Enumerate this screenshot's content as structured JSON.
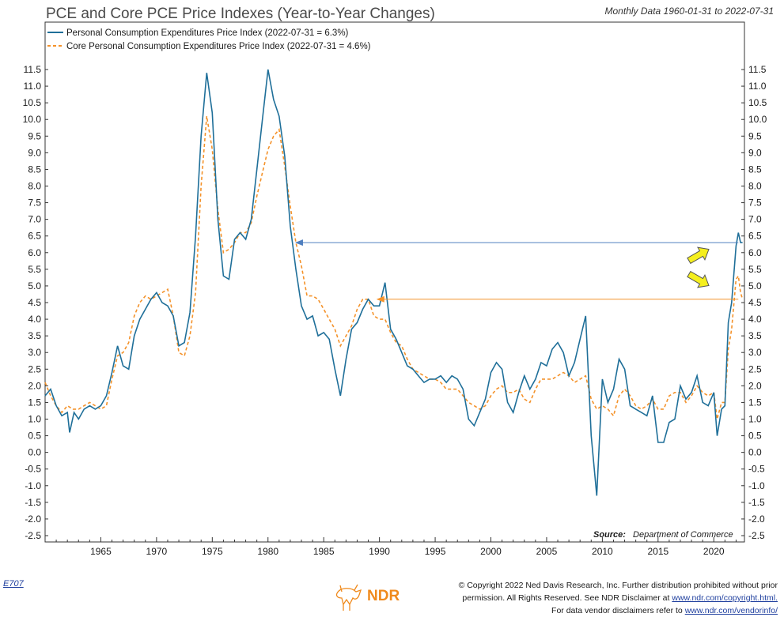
{
  "header": {
    "title": "PCE and Core PCE Price Indexes (Year-to-Year Changes)",
    "subtitle": "Monthly Data 1960-01-31 to 2022-07-31"
  },
  "legend": {
    "series1_label": "Personal Consumption Expenditures Price Index (2022-07-31 = 6.3%)",
    "series2_label": "Core Personal Consumption Expenditures Price Index (2022-07-31 = 4.6%)"
  },
  "source": {
    "label": "Source:",
    "value": "Department of Commerce"
  },
  "footer": {
    "chart_code": "E707",
    "copyright_line1": "© Copyright 2022 Ned Davis Research, Inc. Further distribution prohibited without prior",
    "copyright_line2_prefix": "permission. All Rights Reserved. See NDR Disclaimer at",
    "copyright_line2_link": "www.ndr.com/copyright.html.",
    "copyright_line3_prefix": "For data vendor disclaimers refer to",
    "copyright_line3_link": "www.ndr.com/vendorinfo/",
    "logo_text": "NDR"
  },
  "colors": {
    "pce": "#1f6f99",
    "core_pce": "#f4922a",
    "arrow_pce": "#4f7fbf",
    "arrow_core": "#f4922a",
    "callout_arrow": "#f5ef1e"
  },
  "chart_data": {
    "type": "line",
    "x_range": [
      "1960-01",
      "2022-07"
    ],
    "ylim": [
      -2.5,
      11.5
    ],
    "yticks": [
      "-2.5",
      "-2.0",
      "-1.5",
      "-1.0",
      "-0.5",
      "0.0",
      "0.5",
      "1.0",
      "1.5",
      "2.0",
      "2.5",
      "3.0",
      "3.5",
      "4.0",
      "4.5",
      "5.0",
      "5.5",
      "6.0",
      "6.5",
      "7.0",
      "7.5",
      "8.0",
      "8.5",
      "9.0",
      "9.5",
      "10.0",
      "10.5",
      "11.0",
      "11.5"
    ],
    "xticks": [
      "1965",
      "1970",
      "1975",
      "1980",
      "1985",
      "1990",
      "1995",
      "2000",
      "2005",
      "2010",
      "2015",
      "2020"
    ],
    "grid": false,
    "legend_position": "top-left",
    "series": [
      {
        "name": "Personal Consumption Expenditures Price Index",
        "style": "solid",
        "points": [
          [
            1960.0,
            1.7
          ],
          [
            1960.5,
            1.9
          ],
          [
            1961.0,
            1.4
          ],
          [
            1961.5,
            1.1
          ],
          [
            1962.0,
            1.2
          ],
          [
            1962.2,
            0.6
          ],
          [
            1962.6,
            1.2
          ],
          [
            1963.0,
            1.0
          ],
          [
            1963.5,
            1.3
          ],
          [
            1964.0,
            1.4
          ],
          [
            1964.5,
            1.3
          ],
          [
            1965.0,
            1.4
          ],
          [
            1965.5,
            1.7
          ],
          [
            1966.0,
            2.4
          ],
          [
            1966.5,
            3.2
          ],
          [
            1967.0,
            2.6
          ],
          [
            1967.5,
            2.5
          ],
          [
            1968.0,
            3.5
          ],
          [
            1968.5,
            4.0
          ],
          [
            1969.0,
            4.3
          ],
          [
            1969.5,
            4.6
          ],
          [
            1970.0,
            4.8
          ],
          [
            1970.5,
            4.5
          ],
          [
            1971.0,
            4.4
          ],
          [
            1971.5,
            4.1
          ],
          [
            1972.0,
            3.2
          ],
          [
            1972.5,
            3.3
          ],
          [
            1973.0,
            4.2
          ],
          [
            1973.5,
            6.5
          ],
          [
            1974.0,
            9.5
          ],
          [
            1974.5,
            11.4
          ],
          [
            1975.0,
            10.2
          ],
          [
            1975.5,
            7.0
          ],
          [
            1976.0,
            5.3
          ],
          [
            1976.5,
            5.2
          ],
          [
            1977.0,
            6.4
          ],
          [
            1977.5,
            6.6
          ],
          [
            1978.0,
            6.4
          ],
          [
            1978.5,
            7.0
          ],
          [
            1979.0,
            8.5
          ],
          [
            1979.5,
            10.0
          ],
          [
            1980.0,
            11.5
          ],
          [
            1980.5,
            10.6
          ],
          [
            1981.0,
            10.1
          ],
          [
            1981.5,
            8.9
          ],
          [
            1982.0,
            6.8
          ],
          [
            1982.5,
            5.5
          ],
          [
            1983.0,
            4.4
          ],
          [
            1983.5,
            4.0
          ],
          [
            1984.0,
            4.1
          ],
          [
            1984.5,
            3.5
          ],
          [
            1985.0,
            3.6
          ],
          [
            1985.5,
            3.4
          ],
          [
            1986.0,
            2.5
          ],
          [
            1986.5,
            1.7
          ],
          [
            1987.0,
            2.8
          ],
          [
            1987.5,
            3.7
          ],
          [
            1988.0,
            3.9
          ],
          [
            1988.5,
            4.3
          ],
          [
            1989.0,
            4.6
          ],
          [
            1989.5,
            4.4
          ],
          [
            1990.0,
            4.4
          ],
          [
            1990.5,
            5.1
          ],
          [
            1991.0,
            3.7
          ],
          [
            1991.5,
            3.4
          ],
          [
            1992.0,
            3.0
          ],
          [
            1992.5,
            2.6
          ],
          [
            1993.0,
            2.5
          ],
          [
            1993.5,
            2.3
          ],
          [
            1994.0,
            2.1
          ],
          [
            1994.5,
            2.2
          ],
          [
            1995.0,
            2.2
          ],
          [
            1995.5,
            2.3
          ],
          [
            1996.0,
            2.1
          ],
          [
            1996.5,
            2.3
          ],
          [
            1997.0,
            2.2
          ],
          [
            1997.5,
            1.9
          ],
          [
            1998.0,
            1.0
          ],
          [
            1998.5,
            0.8
          ],
          [
            1999.0,
            1.2
          ],
          [
            1999.5,
            1.6
          ],
          [
            2000.0,
            2.4
          ],
          [
            2000.5,
            2.7
          ],
          [
            2001.0,
            2.5
          ],
          [
            2001.5,
            1.5
          ],
          [
            2002.0,
            1.2
          ],
          [
            2002.5,
            1.8
          ],
          [
            2003.0,
            2.3
          ],
          [
            2003.5,
            1.9
          ],
          [
            2004.0,
            2.2
          ],
          [
            2004.5,
            2.7
          ],
          [
            2005.0,
            2.6
          ],
          [
            2005.5,
            3.1
          ],
          [
            2006.0,
            3.3
          ],
          [
            2006.5,
            3.0
          ],
          [
            2007.0,
            2.3
          ],
          [
            2007.5,
            2.7
          ],
          [
            2008.0,
            3.4
          ],
          [
            2008.5,
            4.1
          ],
          [
            2009.0,
            0.5
          ],
          [
            2009.5,
            -1.3
          ],
          [
            2010.0,
            2.2
          ],
          [
            2010.5,
            1.5
          ],
          [
            2011.0,
            1.9
          ],
          [
            2011.5,
            2.8
          ],
          [
            2012.0,
            2.5
          ],
          [
            2012.5,
            1.4
          ],
          [
            2013.0,
            1.3
          ],
          [
            2013.5,
            1.2
          ],
          [
            2014.0,
            1.1
          ],
          [
            2014.5,
            1.7
          ],
          [
            2015.0,
            0.3
          ],
          [
            2015.5,
            0.3
          ],
          [
            2016.0,
            0.9
          ],
          [
            2016.5,
            1.0
          ],
          [
            2017.0,
            2.0
          ],
          [
            2017.5,
            1.6
          ],
          [
            2018.0,
            1.8
          ],
          [
            2018.5,
            2.3
          ],
          [
            2019.0,
            1.5
          ],
          [
            2019.5,
            1.4
          ],
          [
            2020.0,
            1.8
          ],
          [
            2020.3,
            0.5
          ],
          [
            2020.7,
            1.3
          ],
          [
            2021.0,
            1.4
          ],
          [
            2021.3,
            3.9
          ],
          [
            2021.6,
            4.5
          ],
          [
            2022.0,
            6.2
          ],
          [
            2022.2,
            6.6
          ],
          [
            2022.4,
            6.3
          ],
          [
            2022.58,
            6.3
          ]
        ]
      },
      {
        "name": "Core Personal Consumption Expenditures Price Index",
        "style": "dashed",
        "points": [
          [
            1960.0,
            2.1
          ],
          [
            1960.5,
            1.7
          ],
          [
            1961.0,
            1.4
          ],
          [
            1961.5,
            1.2
          ],
          [
            1962.0,
            1.4
          ],
          [
            1962.5,
            1.3
          ],
          [
            1963.0,
            1.3
          ],
          [
            1963.5,
            1.4
          ],
          [
            1964.0,
            1.5
          ],
          [
            1964.5,
            1.4
          ],
          [
            1965.0,
            1.3
          ],
          [
            1965.5,
            1.4
          ],
          [
            1966.0,
            2.2
          ],
          [
            1966.5,
            2.9
          ],
          [
            1967.0,
            3.0
          ],
          [
            1967.5,
            3.3
          ],
          [
            1968.0,
            4.1
          ],
          [
            1968.5,
            4.5
          ],
          [
            1969.0,
            4.7
          ],
          [
            1969.5,
            4.6
          ],
          [
            1970.0,
            4.7
          ],
          [
            1970.5,
            4.8
          ],
          [
            1971.0,
            4.9
          ],
          [
            1971.5,
            4.1
          ],
          [
            1972.0,
            3.0
          ],
          [
            1972.5,
            2.9
          ],
          [
            1973.0,
            3.5
          ],
          [
            1973.5,
            4.8
          ],
          [
            1974.0,
            8.0
          ],
          [
            1974.5,
            10.1
          ],
          [
            1975.0,
            9.1
          ],
          [
            1975.5,
            7.3
          ],
          [
            1976.0,
            6.0
          ],
          [
            1976.5,
            6.1
          ],
          [
            1977.0,
            6.3
          ],
          [
            1977.5,
            6.6
          ],
          [
            1978.0,
            6.6
          ],
          [
            1978.5,
            6.9
          ],
          [
            1979.0,
            7.7
          ],
          [
            1979.5,
            8.4
          ],
          [
            1980.0,
            9.1
          ],
          [
            1980.5,
            9.5
          ],
          [
            1981.0,
            9.7
          ],
          [
            1981.5,
            8.6
          ],
          [
            1982.0,
            7.4
          ],
          [
            1982.5,
            6.3
          ],
          [
            1983.0,
            5.6
          ],
          [
            1983.5,
            4.7
          ],
          [
            1984.0,
            4.7
          ],
          [
            1984.5,
            4.6
          ],
          [
            1985.0,
            4.3
          ],
          [
            1985.5,
            4.0
          ],
          [
            1986.0,
            3.7
          ],
          [
            1986.5,
            3.2
          ],
          [
            1987.0,
            3.5
          ],
          [
            1987.5,
            3.8
          ],
          [
            1988.0,
            4.3
          ],
          [
            1988.5,
            4.6
          ],
          [
            1989.0,
            4.6
          ],
          [
            1989.5,
            4.1
          ],
          [
            1990.0,
            4.0
          ],
          [
            1990.5,
            4.0
          ],
          [
            1991.0,
            3.6
          ],
          [
            1991.5,
            3.3
          ],
          [
            1992.0,
            3.2
          ],
          [
            1992.5,
            2.8
          ],
          [
            1993.0,
            2.5
          ],
          [
            1993.5,
            2.4
          ],
          [
            1994.0,
            2.3
          ],
          [
            1994.5,
            2.2
          ],
          [
            1995.0,
            2.2
          ],
          [
            1995.5,
            2.1
          ],
          [
            1996.0,
            1.9
          ],
          [
            1996.5,
            1.9
          ],
          [
            1997.0,
            1.9
          ],
          [
            1997.5,
            1.7
          ],
          [
            1998.0,
            1.5
          ],
          [
            1998.5,
            1.4
          ],
          [
            1999.0,
            1.3
          ],
          [
            1999.5,
            1.4
          ],
          [
            2000.0,
            1.7
          ],
          [
            2000.5,
            1.9
          ],
          [
            2001.0,
            2.0
          ],
          [
            2001.5,
            1.8
          ],
          [
            2002.0,
            1.8
          ],
          [
            2002.5,
            1.9
          ],
          [
            2003.0,
            1.6
          ],
          [
            2003.5,
            1.5
          ],
          [
            2004.0,
            1.9
          ],
          [
            2004.5,
            2.2
          ],
          [
            2005.0,
            2.2
          ],
          [
            2005.5,
            2.2
          ],
          [
            2006.0,
            2.3
          ],
          [
            2006.5,
            2.4
          ],
          [
            2007.0,
            2.3
          ],
          [
            2007.5,
            2.1
          ],
          [
            2008.0,
            2.2
          ],
          [
            2008.5,
            2.3
          ],
          [
            2009.0,
            1.6
          ],
          [
            2009.5,
            1.3
          ],
          [
            2010.0,
            1.4
          ],
          [
            2010.5,
            1.3
          ],
          [
            2011.0,
            1.1
          ],
          [
            2011.5,
            1.7
          ],
          [
            2012.0,
            1.9
          ],
          [
            2012.5,
            1.7
          ],
          [
            2013.0,
            1.4
          ],
          [
            2013.5,
            1.3
          ],
          [
            2014.0,
            1.4
          ],
          [
            2014.5,
            1.6
          ],
          [
            2015.0,
            1.3
          ],
          [
            2015.5,
            1.3
          ],
          [
            2016.0,
            1.7
          ],
          [
            2016.5,
            1.8
          ],
          [
            2017.0,
            1.8
          ],
          [
            2017.5,
            1.5
          ],
          [
            2018.0,
            1.7
          ],
          [
            2018.5,
            2.0
          ],
          [
            2019.0,
            1.8
          ],
          [
            2019.5,
            1.7
          ],
          [
            2020.0,
            1.8
          ],
          [
            2020.3,
            1.0
          ],
          [
            2020.7,
            1.5
          ],
          [
            2021.0,
            1.5
          ],
          [
            2021.3,
            3.1
          ],
          [
            2021.6,
            3.7
          ],
          [
            2022.0,
            5.2
          ],
          [
            2022.2,
            5.3
          ],
          [
            2022.4,
            4.8
          ],
          [
            2022.58,
            4.6
          ]
        ]
      }
    ],
    "annotations": [
      {
        "type": "arrow",
        "from": [
          2022.2,
          6.3
        ],
        "to": [
          1982.5,
          6.3
        ],
        "series": "Personal Consumption Expenditures Price Index"
      },
      {
        "type": "arrow",
        "from": [
          2022.2,
          4.6
        ],
        "to": [
          1989.8,
          4.6
        ],
        "series": "Core Personal Consumption Expenditures Price Index"
      },
      {
        "type": "callout-arrow",
        "direction": "up-right",
        "points_to": "Personal Consumption Expenditures Price Index"
      },
      {
        "type": "callout-arrow",
        "direction": "down-right",
        "points_to": "Core Personal Consumption Expenditures Price Index"
      }
    ]
  }
}
